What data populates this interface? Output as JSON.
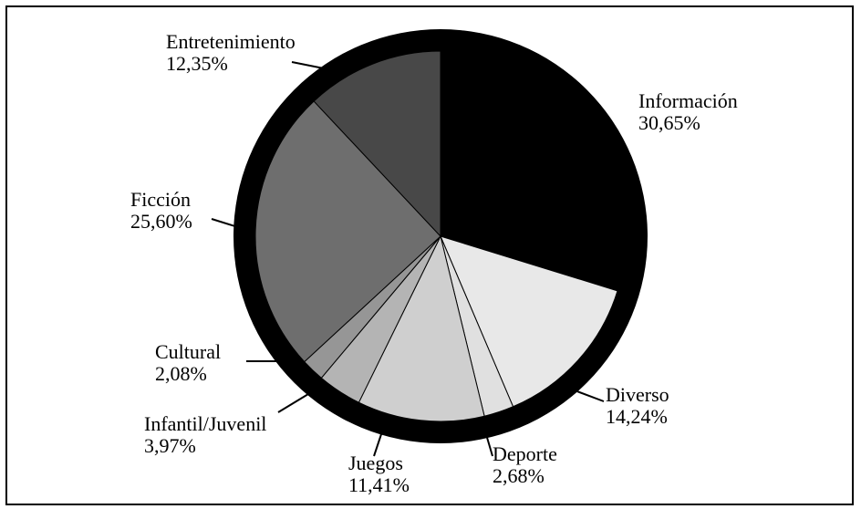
{
  "chart_data": {
    "type": "pie",
    "title": "",
    "legend": "none",
    "slices": [
      {
        "label": "Información",
        "value": 30.65,
        "value_label": "30,65%",
        "color": "#000000"
      },
      {
        "label": "Diverso",
        "value": 14.24,
        "value_label": "14,24%",
        "color": "#e8e8e8"
      },
      {
        "label": "Deporte",
        "value": 2.68,
        "value_label": "2,68%",
        "color": "#e0e0e0"
      },
      {
        "label": "Juegos",
        "value": 11.41,
        "value_label": "11,41%",
        "color": "#cfcfcf"
      },
      {
        "label": "Infantil/Juvenil",
        "value": 3.97,
        "value_label": "3,97%",
        "color": "#b4b4b4"
      },
      {
        "label": "Cultural",
        "value": 2.08,
        "value_label": "2,08%",
        "color": "#969696"
      },
      {
        "label": "Ficción",
        "value": 25.6,
        "value_label": "25,60%",
        "color": "#6e6e6e"
      },
      {
        "label": "Entretenimiento",
        "value": 12.35,
        "value_label": "12,35%",
        "color": "#484848"
      }
    ]
  }
}
